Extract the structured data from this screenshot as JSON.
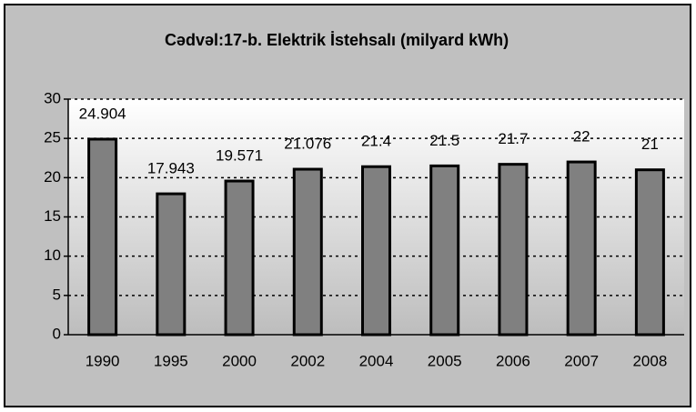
{
  "chart_data": {
    "type": "bar",
    "title": "Cədvəl:17-b. Elektrik İstehsalı (milyard kWh)",
    "categories": [
      "1990",
      "1995",
      "2000",
      "2002",
      "2004",
      "2005",
      "2006",
      "2007",
      "2008"
    ],
    "values": [
      24.904,
      17.943,
      19.571,
      21.076,
      21.4,
      21.5,
      21.7,
      22,
      21
    ],
    "color": "#808080",
    "ylim": [
      0,
      30
    ],
    "yticks": [
      0,
      5,
      10,
      15,
      20,
      25,
      30
    ],
    "grid": true
  }
}
